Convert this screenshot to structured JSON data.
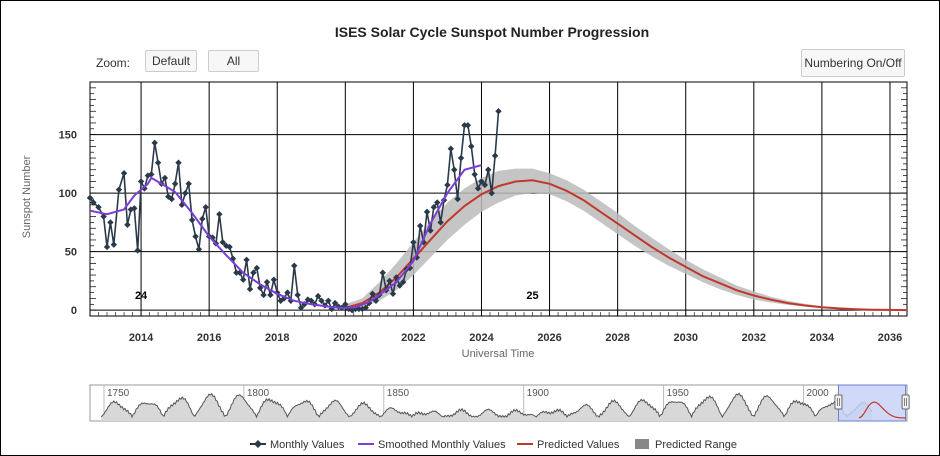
{
  "chart_data": {
    "type": "line",
    "title": "ISES Solar Cycle Sunspot Number Progression",
    "xlabel": "Universal Time",
    "ylabel": "Sunspot Number",
    "xlim": [
      2012.5,
      2036.5
    ],
    "ylim": [
      -5,
      195
    ],
    "x_ticks": [
      "2014",
      "2016",
      "2018",
      "2020",
      "2022",
      "2024",
      "2026",
      "2028",
      "2030",
      "2032",
      "2034",
      "2036"
    ],
    "y_ticks": [
      "0",
      "50",
      "100",
      "150"
    ],
    "grid": true,
    "cycle_labels": [
      {
        "text": "24",
        "x": 2014.0,
        "y": 13
      },
      {
        "text": "25",
        "x": 2025.5,
        "y": 13
      }
    ],
    "series": [
      {
        "name": "Monthly Values",
        "color": "#2b3a4a",
        "points": [
          [
            2012.5,
            96
          ],
          [
            2012.6,
            92
          ],
          [
            2012.75,
            88
          ],
          [
            2012.9,
            80
          ],
          [
            2013.0,
            54
          ],
          [
            2013.1,
            75
          ],
          [
            2013.2,
            56
          ],
          [
            2013.35,
            103
          ],
          [
            2013.5,
            117
          ],
          [
            2013.6,
            73
          ],
          [
            2013.7,
            86
          ],
          [
            2013.8,
            87
          ],
          [
            2013.9,
            51
          ],
          [
            2014.0,
            110
          ],
          [
            2014.1,
            104
          ],
          [
            2014.2,
            115
          ],
          [
            2014.3,
            116
          ],
          [
            2014.4,
            143
          ],
          [
            2014.5,
            126
          ],
          [
            2014.6,
            108
          ],
          [
            2014.7,
            113
          ],
          [
            2014.8,
            97
          ],
          [
            2014.9,
            95
          ],
          [
            2015.0,
            108
          ],
          [
            2015.1,
            126
          ],
          [
            2015.2,
            90
          ],
          [
            2015.3,
            100
          ],
          [
            2015.4,
            108
          ],
          [
            2015.5,
            77
          ],
          [
            2015.6,
            63
          ],
          [
            2015.7,
            52
          ],
          [
            2015.8,
            78
          ],
          [
            2015.9,
            88
          ],
          [
            2016.0,
            63
          ],
          [
            2016.1,
            62
          ],
          [
            2016.2,
            57
          ],
          [
            2016.3,
            82
          ],
          [
            2016.4,
            58
          ],
          [
            2016.5,
            55
          ],
          [
            2016.6,
            54
          ],
          [
            2016.7,
            44
          ],
          [
            2016.8,
            32
          ],
          [
            2016.9,
            32
          ],
          [
            2017.0,
            26
          ],
          [
            2017.1,
            43
          ],
          [
            2017.2,
            18
          ],
          [
            2017.3,
            32
          ],
          [
            2017.4,
            36
          ],
          [
            2017.5,
            19
          ],
          [
            2017.6,
            13
          ],
          [
            2017.7,
            24
          ],
          [
            2017.8,
            13
          ],
          [
            2017.9,
            26
          ],
          [
            2018.0,
            15
          ],
          [
            2018.1,
            8
          ],
          [
            2018.2,
            10
          ],
          [
            2018.3,
            15
          ],
          [
            2018.4,
            8
          ],
          [
            2018.5,
            38
          ],
          [
            2018.6,
            13
          ],
          [
            2018.7,
            2
          ],
          [
            2018.8,
            5
          ],
          [
            2018.9,
            9
          ],
          [
            2019.0,
            8
          ],
          [
            2019.1,
            5
          ],
          [
            2019.2,
            12
          ],
          [
            2019.3,
            8
          ],
          [
            2019.4,
            4
          ],
          [
            2019.5,
            8
          ],
          [
            2019.6,
            1
          ],
          [
            2019.7,
            6
          ],
          [
            2019.8,
            3
          ],
          [
            2019.9,
            2
          ],
          [
            2020.0,
            5
          ],
          [
            2020.1,
            1
          ],
          [
            2020.2,
            0
          ],
          [
            2020.3,
            1
          ],
          [
            2020.4,
            1
          ],
          [
            2020.5,
            1
          ],
          [
            2020.6,
            2
          ],
          [
            2020.7,
            6
          ],
          [
            2020.8,
            14
          ],
          [
            2020.9,
            8
          ],
          [
            2021.0,
            13
          ],
          [
            2021.1,
            32
          ],
          [
            2021.2,
            17
          ],
          [
            2021.3,
            25
          ],
          [
            2021.4,
            14
          ],
          [
            2021.5,
            28
          ],
          [
            2021.6,
            21
          ],
          [
            2021.7,
            24
          ],
          [
            2021.8,
            35
          ],
          [
            2021.9,
            36
          ],
          [
            2022.0,
            58
          ],
          [
            2022.1,
            45
          ],
          [
            2022.2,
            72
          ],
          [
            2022.3,
            58
          ],
          [
            2022.4,
            84
          ],
          [
            2022.5,
            68
          ],
          [
            2022.6,
            88
          ],
          [
            2022.7,
            92
          ],
          [
            2022.8,
            75
          ],
          [
            2022.9,
            94
          ],
          [
            2023.0,
            107
          ],
          [
            2023.1,
            138
          ],
          [
            2023.2,
            120
          ],
          [
            2023.3,
            95
          ],
          [
            2023.4,
            130
          ],
          [
            2023.5,
            158
          ],
          [
            2023.6,
            158
          ],
          [
            2023.7,
            140
          ],
          [
            2023.8,
            116
          ],
          [
            2023.9,
            104
          ],
          [
            2024.0,
            110
          ],
          [
            2024.1,
            107
          ],
          [
            2024.2,
            120
          ],
          [
            2024.3,
            100
          ],
          [
            2024.4,
            132
          ],
          [
            2024.5,
            170
          ]
        ]
      },
      {
        "name": "Smoothed Monthly Values",
        "color": "#7b3fd6",
        "points": [
          [
            2012.5,
            85
          ],
          [
            2013.0,
            82
          ],
          [
            2013.5,
            86
          ],
          [
            2013.8,
            98
          ],
          [
            2014.2,
            108
          ],
          [
            2014.3,
            113
          ],
          [
            2014.6,
            108
          ],
          [
            2015.0,
            101
          ],
          [
            2015.5,
            83
          ],
          [
            2016.0,
            63
          ],
          [
            2016.5,
            47
          ],
          [
            2017.0,
            32
          ],
          [
            2017.5,
            22
          ],
          [
            2018.0,
            14
          ],
          [
            2018.5,
            8
          ],
          [
            2019.0,
            5
          ],
          [
            2019.5,
            3
          ],
          [
            2019.9,
            1.8
          ],
          [
            2020.3,
            2.5
          ],
          [
            2020.7,
            7
          ],
          [
            2021.0,
            13
          ],
          [
            2021.5,
            24
          ],
          [
            2022.0,
            42
          ],
          [
            2022.5,
            74
          ],
          [
            2023.0,
            100
          ],
          [
            2023.5,
            120
          ],
          [
            2024.0,
            124
          ]
        ]
      },
      {
        "name": "Predicted Values",
        "color": "#c0392b",
        "points": [
          [
            2019.8,
            2
          ],
          [
            2020.0,
            2
          ],
          [
            2020.5,
            6
          ],
          [
            2021.0,
            15
          ],
          [
            2021.5,
            28
          ],
          [
            2022.0,
            44
          ],
          [
            2022.5,
            60
          ],
          [
            2023.0,
            76
          ],
          [
            2023.5,
            89
          ],
          [
            2024.0,
            99
          ],
          [
            2024.5,
            106
          ],
          [
            2025.0,
            110
          ],
          [
            2025.5,
            111
          ],
          [
            2026.0,
            108
          ],
          [
            2026.5,
            102
          ],
          [
            2027.0,
            94
          ],
          [
            2027.5,
            84
          ],
          [
            2028.0,
            74
          ],
          [
            2028.5,
            64
          ],
          [
            2029.0,
            54
          ],
          [
            2029.5,
            45
          ],
          [
            2030.0,
            37
          ],
          [
            2030.5,
            29
          ],
          [
            2031.0,
            23
          ],
          [
            2031.5,
            17
          ],
          [
            2032.0,
            12.5
          ],
          [
            2032.5,
            9
          ],
          [
            2033.0,
            6
          ],
          [
            2033.5,
            4
          ],
          [
            2034.0,
            2.5
          ],
          [
            2034.5,
            1.5
          ],
          [
            2035.0,
            0.8
          ],
          [
            2035.5,
            0.4
          ],
          [
            2036.5,
            0
          ]
        ]
      },
      {
        "name": "Predicted Range",
        "color": "#bbbbbb",
        "upper": [
          [
            2019.8,
            3
          ],
          [
            2020.5,
            10
          ],
          [
            2021.0,
            24
          ],
          [
            2021.5,
            40
          ],
          [
            2022.0,
            58
          ],
          [
            2022.5,
            76
          ],
          [
            2023.0,
            92
          ],
          [
            2023.5,
            104
          ],
          [
            2024.0,
            113
          ],
          [
            2024.5,
            119
          ],
          [
            2025.0,
            121
          ],
          [
            2025.5,
            121
          ],
          [
            2026.0,
            117
          ],
          [
            2026.5,
            111
          ],
          [
            2027.0,
            103
          ],
          [
            2027.5,
            93
          ],
          [
            2028.0,
            83
          ],
          [
            2028.5,
            72
          ],
          [
            2029.0,
            62
          ],
          [
            2029.5,
            52
          ],
          [
            2030.0,
            43
          ],
          [
            2030.5,
            35
          ],
          [
            2031.0,
            28
          ],
          [
            2031.5,
            21
          ],
          [
            2032.0,
            16
          ],
          [
            2032.5,
            11.5
          ],
          [
            2033.0,
            8
          ],
          [
            2033.5,
            5.5
          ],
          [
            2034.0,
            3.5
          ],
          [
            2034.5,
            2
          ],
          [
            2035.0,
            1.2
          ],
          [
            2036.5,
            0.2
          ]
        ],
        "lower": [
          [
            2019.8,
            1
          ],
          [
            2020.5,
            3
          ],
          [
            2021.0,
            8
          ],
          [
            2021.5,
            17
          ],
          [
            2022.0,
            30
          ],
          [
            2022.5,
            45
          ],
          [
            2023.0,
            60
          ],
          [
            2023.5,
            73
          ],
          [
            2024.0,
            84
          ],
          [
            2024.5,
            92
          ],
          [
            2025.0,
            98
          ],
          [
            2025.5,
            100
          ],
          [
            2026.0,
            99
          ],
          [
            2026.5,
            93
          ],
          [
            2027.0,
            85
          ],
          [
            2027.5,
            75
          ],
          [
            2028.0,
            65
          ],
          [
            2028.5,
            55
          ],
          [
            2029.0,
            46
          ],
          [
            2029.5,
            38
          ],
          [
            2030.0,
            31
          ],
          [
            2030.5,
            24
          ],
          [
            2031.0,
            18
          ],
          [
            2031.5,
            13
          ],
          [
            2032.0,
            9
          ],
          [
            2032.5,
            6.5
          ],
          [
            2033.0,
            4.5
          ],
          [
            2033.5,
            3
          ],
          [
            2034.0,
            1.8
          ],
          [
            2034.5,
            1
          ],
          [
            2035.0,
            0.5
          ],
          [
            2036.5,
            0
          ]
        ]
      }
    ],
    "navigator": {
      "xlim": [
        1745,
        2037
      ],
      "labels": [
        "1750",
        "1800",
        "1850",
        "1900",
        "1950",
        "2000"
      ],
      "selected_range": [
        2012.5,
        2036.5
      ]
    },
    "legend": {
      "placement": "bottom",
      "items": [
        "Monthly Values",
        "Smoothed Monthly Values",
        "Predicted Values",
        "Predicted Range"
      ]
    }
  },
  "controls": {
    "zoom_label": "Zoom:",
    "default_label": "Default",
    "all_label": "All",
    "numbering_label": "Numbering On/Off"
  }
}
